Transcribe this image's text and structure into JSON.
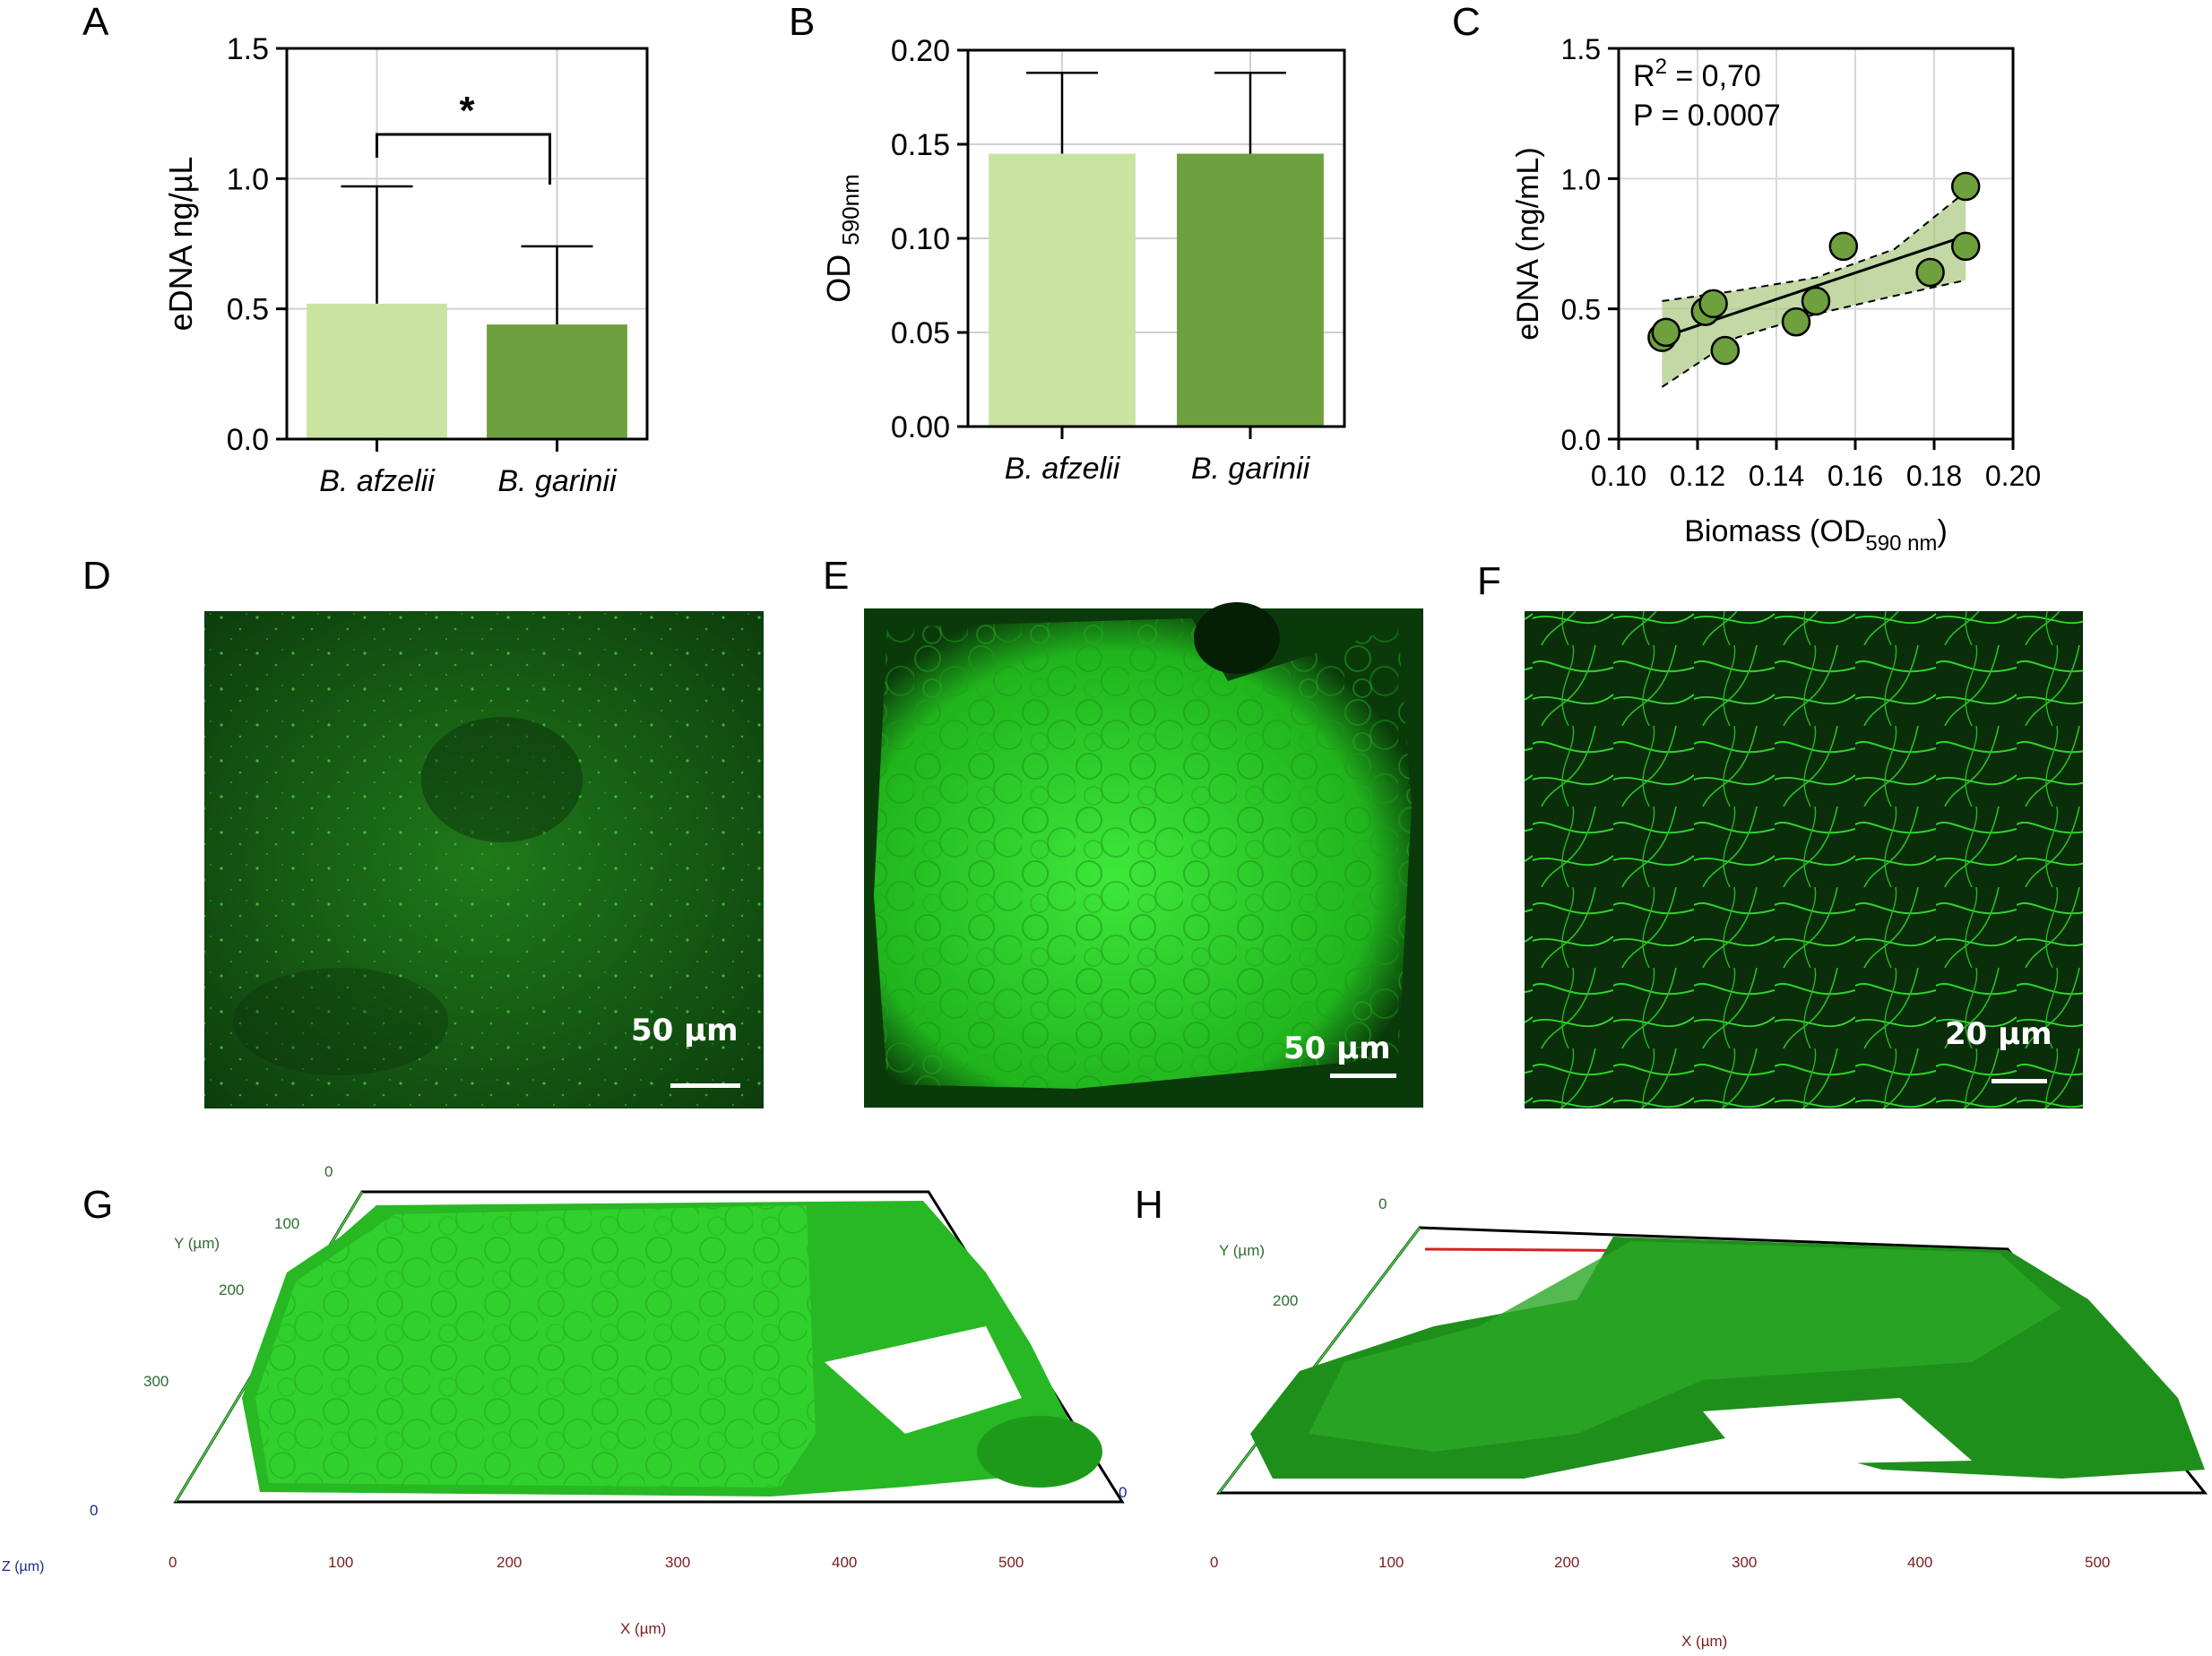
{
  "panels": {
    "A": "A",
    "B": "B",
    "C": "C",
    "D": "D",
    "E": "E",
    "F": "F",
    "G": "G",
    "H": "H"
  },
  "chart_data": [
    {
      "panel": "A",
      "type": "bar",
      "categories": [
        "B. afzelii",
        "B. garinii"
      ],
      "values": [
        0.52,
        0.44
      ],
      "error_upper": [
        0.97,
        0.74
      ],
      "ylabel": "eDNA ng/µL",
      "ylim": [
        0,
        1.5
      ],
      "yticks": [
        "0.0",
        "0.5",
        "1.0",
        "1.5"
      ],
      "ytick_values": [
        0,
        0.5,
        1.0,
        1.5
      ],
      "significance": "*",
      "bar_colors": [
        "#c9e4a1",
        "#6ea13e"
      ],
      "grid": true
    },
    {
      "panel": "B",
      "type": "bar",
      "categories": [
        "B. afzelii",
        "B. garinii"
      ],
      "values": [
        0.145,
        0.145
      ],
      "error_upper": [
        0.188,
        0.188
      ],
      "ylabel": "OD",
      "ylabel_sub": "590nm",
      "ylim": [
        0,
        0.2
      ],
      "yticks": [
        "0.00",
        "0.05",
        "0.10",
        "0.15",
        "0.20"
      ],
      "ytick_values": [
        0,
        0.05,
        0.1,
        0.15,
        0.2
      ],
      "bar_colors": [
        "#c9e4a1",
        "#6ea13e"
      ],
      "grid": true
    },
    {
      "panel": "C",
      "type": "scatter",
      "x": [
        0.111,
        0.112,
        0.122,
        0.124,
        0.127,
        0.145,
        0.15,
        0.157,
        0.179,
        0.188,
        0.188
      ],
      "y": [
        0.39,
        0.41,
        0.49,
        0.52,
        0.34,
        0.45,
        0.53,
        0.74,
        0.64,
        0.97,
        0.74
      ],
      "fit_line": {
        "x": [
          0.111,
          0.188
        ],
        "y": [
          0.39,
          0.78
        ]
      },
      "ci_upper": {
        "x": [
          0.111,
          0.13,
          0.15,
          0.17,
          0.188
        ],
        "y": [
          0.53,
          0.57,
          0.62,
          0.73,
          0.95
        ]
      },
      "ci_lower": {
        "x": [
          0.111,
          0.13,
          0.15,
          0.17,
          0.188
        ],
        "y": [
          0.2,
          0.39,
          0.48,
          0.55,
          0.61
        ]
      },
      "xlabel": "Biomass (OD",
      "xlabel_sub": "590 nm",
      "xlabel_close": ")",
      "ylabel": "eDNA (ng/mL)",
      "xlim": [
        0.1,
        0.2
      ],
      "ylim": [
        0,
        1.5
      ],
      "xticks": [
        "0.10",
        "0.12",
        "0.14",
        "0.16",
        "0.18",
        "0.20"
      ],
      "xtick_values": [
        0.1,
        0.12,
        0.14,
        0.16,
        0.18,
        0.2
      ],
      "yticks": [
        "0.0",
        "0.5",
        "1.0",
        "1.5"
      ],
      "ytick_values": [
        0,
        0.5,
        1.0,
        1.5
      ],
      "annotation_r2_prefix": "R",
      "annotation_r2_sup": "2",
      "annotation_r2_value": " = 0,70",
      "annotation_p": "P = 0.0007",
      "point_color": "#6ea13e",
      "band_color": "#a9c77e",
      "grid": true
    }
  ],
  "micrographs": {
    "D": {
      "scale_label": "50 µm"
    },
    "E": {
      "scale_label": "50 µm"
    },
    "F": {
      "scale_label": "20 µm"
    }
  },
  "render3d": {
    "G": {
      "y_label": "Y (µm)",
      "y_ticks": [
        "0",
        "100",
        "200",
        "300"
      ],
      "z_label": "Z (µm)",
      "z_ticks": [
        "0",
        "0"
      ],
      "x_label": "X (µm)",
      "x_ticks": [
        "0",
        "100",
        "200",
        "300",
        "400",
        "500"
      ]
    },
    "H": {
      "y_label": "Y (µm)",
      "y_ticks": [
        "0",
        "200"
      ],
      "x_label": "X (µm)",
      "x_ticks": [
        "0",
        "100",
        "200",
        "300",
        "400",
        "500"
      ]
    }
  }
}
